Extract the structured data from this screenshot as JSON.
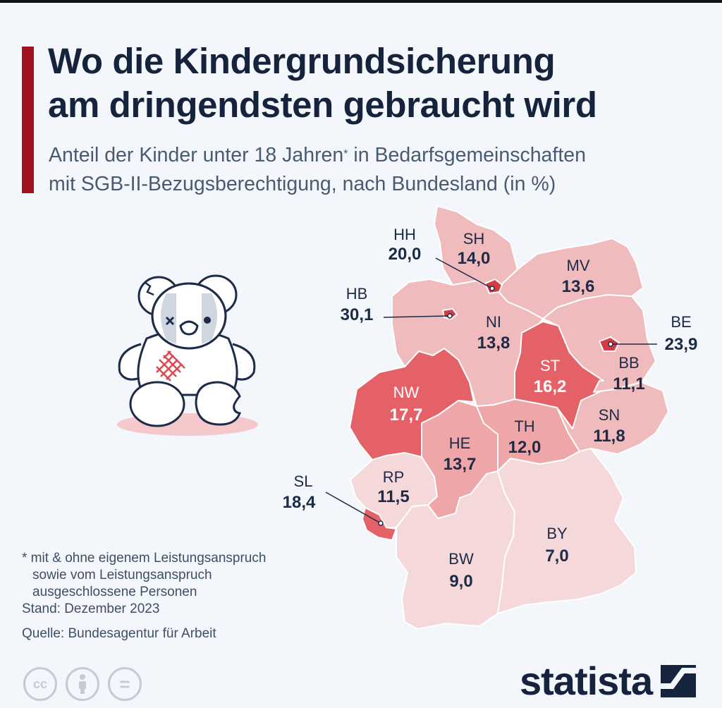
{
  "title": {
    "line1": "Wo die Kindergrundsicherung",
    "line2": "am dringendsten gebraucht wird"
  },
  "subtitle": {
    "line1_pre": "Anteil der Kinder unter 18 Jahren",
    "line1_mark": "*",
    "line1_post": " in Bedarfsgemeinschaften",
    "line2": "mit SGB-II-Bezugsberechtigung, nach Bundesland (in %)"
  },
  "map": {
    "colors": {
      "lightest": "#f5d9da",
      "light": "#f0bbbd",
      "medium": "#eea6a9",
      "strong": "#e46168",
      "city": "#d43c43",
      "border": "#ffffff",
      "label_dark": "#1c2b47",
      "label_light": "#ffffff"
    },
    "regions": [
      {
        "code": "SH",
        "value": "14,0"
      },
      {
        "code": "HH",
        "value": "20,0"
      },
      {
        "code": "MV",
        "value": "13,6"
      },
      {
        "code": "HB",
        "value": "30,1"
      },
      {
        "code": "NI",
        "value": "13,8"
      },
      {
        "code": "BE",
        "value": "23,9"
      },
      {
        "code": "BB",
        "value": "11,1"
      },
      {
        "code": "ST",
        "value": "16,2"
      },
      {
        "code": "NW",
        "value": "17,7"
      },
      {
        "code": "SN",
        "value": "11,8"
      },
      {
        "code": "TH",
        "value": "12,0"
      },
      {
        "code": "HE",
        "value": "13,7"
      },
      {
        "code": "RP",
        "value": "11,5"
      },
      {
        "code": "SL",
        "value": "18,4"
      },
      {
        "code": "BY",
        "value": "7,0"
      },
      {
        "code": "BW",
        "value": "9,0"
      }
    ]
  },
  "footnote": {
    "line1": "* mit & ohne eigenem Leistungsanspruch",
    "line2": "sowie vom Leistungsanspruch",
    "line3": "ausgeschlossene Personen",
    "stand": "Stand: Dezember 2023"
  },
  "source": "Quelle: Bundesagentur für Arbeit",
  "license_icons": [
    "cc-icon",
    "attribution-icon",
    "no-derivatives-icon"
  ],
  "license_marks": {
    "cc": "cc",
    "nd": "="
  },
  "brand": {
    "name": "statista"
  }
}
